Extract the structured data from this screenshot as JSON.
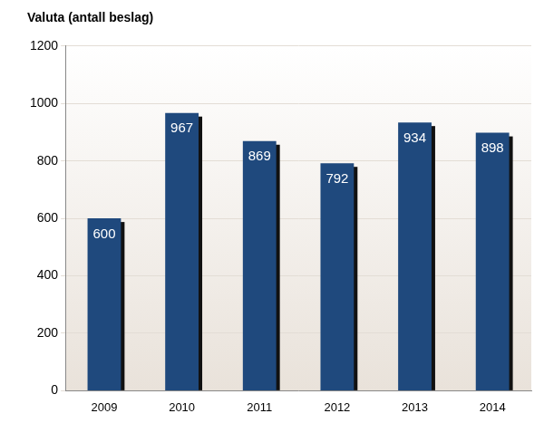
{
  "chart_data": {
    "type": "bar",
    "title": "Valuta (antall beslag)",
    "categories": [
      "2009",
      "2010",
      "2011",
      "2012",
      "2013",
      "2014"
    ],
    "values": [
      600,
      967,
      869,
      792,
      934,
      898
    ],
    "color": "#1f497d",
    "ylim": [
      0,
      1200
    ],
    "yticks": [
      0,
      200,
      400,
      600,
      800,
      1000,
      1200
    ],
    "grid": true,
    "data_labels": true
  }
}
